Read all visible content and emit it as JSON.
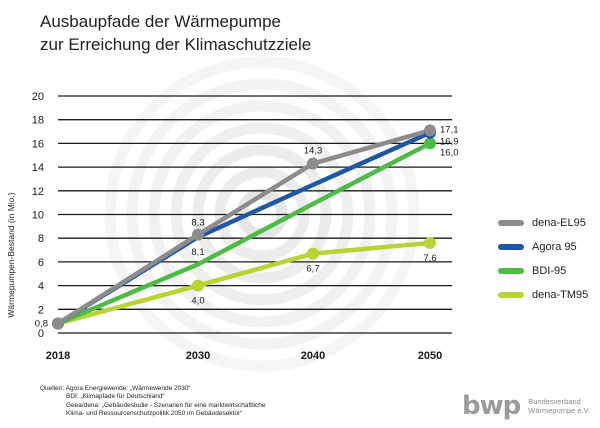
{
  "title": {
    "line1": "Ausbaupfade der Wärmepumpe",
    "line2": "zur Erreichung der Klimaschutzziele"
  },
  "chart_data": {
    "type": "line",
    "ylabel": "Wärmepumpen-Bestand (in Mio.)",
    "xlabel": "",
    "ylim": [
      0,
      20
    ],
    "yticks": [
      "0",
      "2",
      "4",
      "6",
      "8",
      "10",
      "12",
      "14",
      "16",
      "18",
      "20"
    ],
    "x": [
      "2018",
      "2030",
      "2040",
      "2050"
    ],
    "grid": true,
    "legend_position": "right",
    "series": [
      {
        "name": "dena-EL95",
        "color": "#8c8c8c",
        "values": [
          0.8,
          8.3,
          14.3,
          17.1
        ],
        "labels": [
          null,
          "8,3",
          "14,3",
          "17,1"
        ]
      },
      {
        "name": "Agora 95",
        "color": "#1f57a5",
        "values": [
          0.8,
          8.1,
          12.5,
          16.9
        ],
        "labels": [
          null,
          "8,1",
          null,
          "16,9"
        ]
      },
      {
        "name": "BDI-95",
        "color": "#4dbb46",
        "values": [
          0.8,
          5.8,
          10.9,
          16.0
        ],
        "labels": [
          null,
          null,
          null,
          "16,0"
        ]
      },
      {
        "name": "dena-TM95",
        "color": "#b7d334",
        "values": [
          0.8,
          4.0,
          6.7,
          7.6
        ],
        "labels": [
          "0,8",
          "4,0",
          "6,7",
          "7,6"
        ]
      }
    ]
  },
  "sources": [
    "Quellen: Agora Energiewende: „Wärmewende 2030“",
    "BDI: „Klimapfade für Deutschland“",
    "Geea/dena: „Gebäudestudie - Szenarien für eine marktwirtschaftliche",
    "Klima- und Ressourcenschutzpolitik 2050 im Gebäudesektor“"
  ],
  "logo": {
    "mark": "bwp",
    "line1": "Bundesverband",
    "line2": "Wärmepumpe e.V."
  }
}
